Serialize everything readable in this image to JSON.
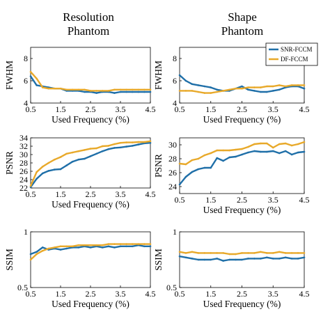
{
  "columns": [
    {
      "title_line1": "Resolution",
      "title_line2": "Phantom"
    },
    {
      "title_line1": "Shape",
      "title_line2": "Phantom"
    }
  ],
  "legend": {
    "position": "top-right of right column",
    "entries": [
      {
        "label": "SNR-FCCM",
        "color": "#1f6fa8"
      },
      {
        "label": "DF-FCCM",
        "color": "#e8a92a"
      }
    ]
  },
  "colors": {
    "snr": "#1f6fa8",
    "df": "#e8a92a",
    "axis": "#000000"
  },
  "chart_data": [
    {
      "type": "line",
      "panel": "Resolution Phantom - FWHM",
      "xlabel": "Used Frequency (%)",
      "ylabel": "FWHM",
      "xlim": [
        0.5,
        4.5
      ],
      "ylim": [
        4,
        9
      ],
      "xticks": [
        0.5,
        1.5,
        2.5,
        3.5,
        4.5
      ],
      "yticks": [
        4,
        6,
        8
      ],
      "x": [
        0.5,
        0.7,
        0.9,
        1.1,
        1.3,
        1.5,
        1.7,
        1.9,
        2.1,
        2.3,
        2.5,
        2.7,
        2.9,
        3.1,
        3.3,
        3.5,
        3.7,
        3.9,
        4.1,
        4.3,
        4.5
      ],
      "series": [
        {
          "name": "SNR-FCCM",
          "values": [
            6.4,
            5.6,
            5.5,
            5.4,
            5.3,
            5.3,
            5.1,
            5.1,
            5.1,
            5.0,
            5.0,
            4.9,
            5.0,
            5.0,
            4.9,
            5.0,
            5.0,
            5.0,
            5.0,
            5.0,
            5.0
          ]
        },
        {
          "name": "DF-FCCM",
          "values": [
            6.8,
            6.2,
            5.4,
            5.3,
            5.3,
            5.3,
            5.2,
            5.2,
            5.2,
            5.2,
            5.1,
            5.1,
            5.1,
            5.1,
            5.2,
            5.2,
            5.2,
            5.2,
            5.2,
            5.2,
            5.2
          ]
        }
      ]
    },
    {
      "type": "line",
      "panel": "Shape Phantom - FWHM",
      "xlabel": "Used Frequency (%)",
      "ylabel": "FWHM",
      "xlim": [
        0.5,
        4.5
      ],
      "ylim": [
        4,
        9
      ],
      "xticks": [
        0.5,
        1.5,
        2.5,
        3.5,
        4.5
      ],
      "yticks": [
        4,
        6,
        8
      ],
      "x": [
        0.5,
        0.7,
        0.9,
        1.1,
        1.3,
        1.5,
        1.7,
        1.9,
        2.1,
        2.3,
        2.5,
        2.7,
        2.9,
        3.1,
        3.3,
        3.5,
        3.7,
        3.9,
        4.1,
        4.3,
        4.5
      ],
      "series": [
        {
          "name": "SNR-FCCM",
          "values": [
            6.5,
            6.0,
            5.7,
            5.6,
            5.5,
            5.4,
            5.2,
            5.1,
            5.1,
            5.3,
            5.5,
            5.2,
            5.1,
            5.0,
            5.0,
            5.1,
            5.2,
            5.4,
            5.5,
            5.5,
            5.3
          ]
        },
        {
          "name": "DF-FCCM",
          "values": [
            5.1,
            5.1,
            5.1,
            5.0,
            4.9,
            4.9,
            5.0,
            5.1,
            5.2,
            5.3,
            5.3,
            5.4,
            5.4,
            5.4,
            5.5,
            5.5,
            5.6,
            5.5,
            5.6,
            5.6,
            5.6
          ]
        }
      ]
    },
    {
      "type": "line",
      "panel": "Resolution Phantom - PSNR",
      "xlabel": "Used Frequency (%)",
      "ylabel": "PSNR",
      "xlim": [
        0.5,
        4.5
      ],
      "ylim": [
        22,
        34
      ],
      "xticks": [
        0.5,
        1.5,
        2.5,
        3.5,
        4.5
      ],
      "yticks": [
        22,
        24,
        26,
        28,
        30,
        32,
        34
      ],
      "x": [
        0.5,
        0.7,
        0.9,
        1.1,
        1.3,
        1.5,
        1.7,
        1.9,
        2.1,
        2.3,
        2.5,
        2.7,
        2.9,
        3.1,
        3.3,
        3.5,
        3.7,
        3.9,
        4.1,
        4.3,
        4.5
      ],
      "series": [
        {
          "name": "SNR-FCCM",
          "values": [
            22.2,
            24.2,
            25.5,
            26.1,
            26.4,
            26.5,
            27.4,
            28.3,
            28.8,
            29.0,
            29.6,
            30.2,
            30.8,
            31.3,
            31.6,
            31.7,
            31.9,
            32.1,
            32.4,
            32.7,
            32.8
          ]
        },
        {
          "name": "DF-FCCM",
          "values": [
            22.5,
            25.8,
            27.1,
            28.0,
            28.8,
            29.4,
            30.2,
            30.5,
            30.8,
            31.1,
            31.4,
            31.5,
            32.0,
            32.1,
            32.5,
            32.8,
            32.9,
            32.9,
            33.0,
            33.0,
            33.2
          ]
        }
      ]
    },
    {
      "type": "line",
      "panel": "Shape Phantom - PSNR",
      "xlabel": "Used Frequency (%)",
      "ylabel": "PSNR",
      "xlim": [
        0.5,
        4.5
      ],
      "ylim": [
        23,
        31
      ],
      "xticks": [
        0.5,
        1.5,
        2.5,
        3.5,
        4.5
      ],
      "yticks": [
        24,
        26,
        28,
        30
      ],
      "x": [
        0.5,
        0.7,
        0.9,
        1.1,
        1.3,
        1.5,
        1.7,
        1.9,
        2.1,
        2.3,
        2.5,
        2.7,
        2.9,
        3.1,
        3.3,
        3.5,
        3.7,
        3.9,
        4.1,
        4.3,
        4.5
      ],
      "series": [
        {
          "name": "SNR-FCCM",
          "values": [
            24.3,
            25.4,
            26.1,
            26.5,
            26.7,
            26.7,
            28.1,
            27.7,
            28.2,
            28.3,
            28.6,
            28.9,
            29.1,
            29.0,
            29.0,
            29.1,
            28.8,
            29.1,
            28.6,
            28.9,
            29.0
          ]
        },
        {
          "name": "DF-FCCM",
          "values": [
            27.3,
            27.2,
            27.8,
            28.0,
            28.5,
            28.8,
            29.2,
            29.2,
            29.2,
            29.3,
            29.4,
            29.7,
            30.1,
            30.2,
            30.2,
            29.6,
            30.1,
            30.2,
            29.9,
            30.1,
            30.4
          ]
        }
      ]
    },
    {
      "type": "line",
      "panel": "Resolution Phantom - SSIM",
      "xlabel": "Used Frequency (%)",
      "ylabel": "SSIM",
      "xlim": [
        0.5,
        4.5
      ],
      "ylim": [
        0.5,
        1
      ],
      "xticks": [
        0.5,
        1.5,
        2.5,
        3.5,
        4.5
      ],
      "yticks": [
        0.5,
        1
      ],
      "x": [
        0.5,
        0.7,
        0.9,
        1.1,
        1.3,
        1.5,
        1.7,
        1.9,
        2.1,
        2.3,
        2.5,
        2.7,
        2.9,
        3.1,
        3.3,
        3.5,
        3.7,
        3.9,
        4.1,
        4.3,
        4.5
      ],
      "series": [
        {
          "name": "SNR-FCCM",
          "values": [
            0.8,
            0.82,
            0.86,
            0.84,
            0.85,
            0.84,
            0.85,
            0.86,
            0.86,
            0.87,
            0.86,
            0.87,
            0.86,
            0.87,
            0.86,
            0.87,
            0.87,
            0.87,
            0.88,
            0.87,
            0.87
          ]
        },
        {
          "name": "DF-FCCM",
          "values": [
            0.75,
            0.8,
            0.83,
            0.85,
            0.86,
            0.87,
            0.87,
            0.87,
            0.88,
            0.88,
            0.88,
            0.88,
            0.88,
            0.89,
            0.89,
            0.89,
            0.89,
            0.89,
            0.89,
            0.89,
            0.89
          ]
        }
      ]
    },
    {
      "type": "line",
      "panel": "Shape Phantom - SSIM",
      "xlabel": "Used Frequency (%)",
      "ylabel": "SSIM",
      "xlim": [
        0.5,
        4.5
      ],
      "ylim": [
        0.5,
        1
      ],
      "xticks": [
        0.5,
        1.5,
        2.5,
        3.5,
        4.5
      ],
      "yticks": [
        0.5,
        1
      ],
      "x": [
        0.5,
        0.7,
        0.9,
        1.1,
        1.3,
        1.5,
        1.7,
        1.9,
        2.1,
        2.3,
        2.5,
        2.7,
        2.9,
        3.1,
        3.3,
        3.5,
        3.7,
        3.9,
        4.1,
        4.3,
        4.5
      ],
      "series": [
        {
          "name": "SNR-FCCM",
          "values": [
            0.78,
            0.77,
            0.76,
            0.75,
            0.75,
            0.75,
            0.76,
            0.74,
            0.75,
            0.75,
            0.75,
            0.76,
            0.76,
            0.76,
            0.77,
            0.76,
            0.76,
            0.77,
            0.76,
            0.76,
            0.77
          ]
        },
        {
          "name": "DF-FCCM",
          "values": [
            0.82,
            0.81,
            0.82,
            0.81,
            0.81,
            0.81,
            0.81,
            0.81,
            0.8,
            0.8,
            0.81,
            0.81,
            0.81,
            0.82,
            0.81,
            0.81,
            0.82,
            0.81,
            0.81,
            0.81,
            0.81
          ]
        }
      ]
    }
  ]
}
